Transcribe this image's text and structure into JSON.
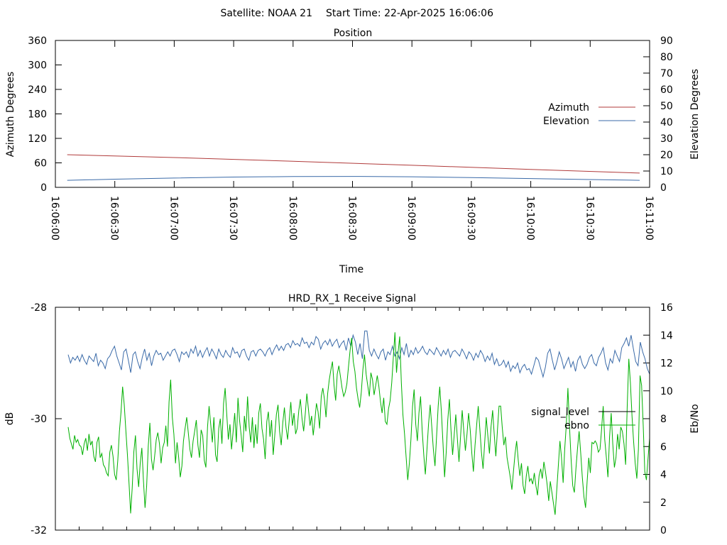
{
  "header": {
    "satellite_label": "Satellite: NOAA 21",
    "start_time_label": "Start Time: 22-Apr-2025 16:06:06"
  },
  "colors": {
    "azimuth": "#b03a3a",
    "elevation": "#3a6aa8",
    "signal_level": "#000000",
    "ebno": "#00b000",
    "axes": "#000000"
  },
  "chart_data": [
    {
      "type": "line",
      "title": "Position",
      "xlabel": "Time",
      "ylabel": "Azimuth Degrees",
      "y2label": "Elevation Degrees",
      "x_range": [
        "16:06:00",
        "16:11:00"
      ],
      "x_ticks": [
        "16:06:00",
        "16:06:30",
        "16:07:00",
        "16:07:30",
        "16:08:00",
        "16:08:30",
        "16:09:00",
        "16:09:30",
        "16:10:00",
        "16:10:30",
        "16:11:00"
      ],
      "ylim": [
        0,
        360
      ],
      "y_ticks": [
        0,
        60,
        120,
        180,
        240,
        300,
        360
      ],
      "y2lim": [
        0,
        90
      ],
      "y2_ticks": [
        0,
        10,
        20,
        30,
        40,
        50,
        60,
        70,
        80,
        90
      ],
      "legend_position": "right",
      "series": [
        {
          "name": "Azimuth",
          "axis": "y1",
          "color": "#b03a3a",
          "points": [
            [
              "16:06:06",
              80
            ],
            [
              "16:07:00",
              73
            ],
            [
              "16:08:00",
              64
            ],
            [
              "16:09:00",
              54
            ],
            [
              "16:10:00",
              44
            ],
            [
              "16:10:55",
              35
            ]
          ]
        },
        {
          "name": "Elevation",
          "axis": "y2",
          "color": "#3a6aa8",
          "points": [
            [
              "16:06:06",
              4.3
            ],
            [
              "16:06:30",
              5.0
            ],
            [
              "16:07:00",
              5.7
            ],
            [
              "16:07:30",
              6.3
            ],
            [
              "16:08:00",
              6.6
            ],
            [
              "16:08:30",
              6.7
            ],
            [
              "16:09:00",
              6.5
            ],
            [
              "16:09:30",
              6.0
            ],
            [
              "16:10:00",
              5.4
            ],
            [
              "16:10:30",
              4.8
            ],
            [
              "16:10:55",
              4.3
            ]
          ]
        }
      ]
    },
    {
      "type": "line",
      "title": "HRD_RX_1 Receive Signal",
      "xlabel": "",
      "ylabel": "dB",
      "y2label": "Eb/No",
      "ylim": [
        -32,
        -28
      ],
      "y_ticks": [
        -32,
        -30,
        -28
      ],
      "y2lim": [
        0,
        16
      ],
      "y2_ticks": [
        0,
        2,
        4,
        6,
        8,
        10,
        12,
        14,
        16
      ],
      "x_minor_ticks": 25,
      "legend_position": "right",
      "series": [
        {
          "name": "signal_level",
          "axis": "y2",
          "color": "#000000",
          "values": []
        },
        {
          "name": "ebno",
          "axis": "y2",
          "color": "#00b000",
          "values": []
        }
      ],
      "traces_shown": [
        {
          "color": "#3a6aa8",
          "axis": "y2",
          "sample_interval_s": 1.5,
          "values": [
            12.6,
            12.0,
            12.4,
            12.2,
            12.5,
            12.1,
            12.6,
            12.2,
            11.9,
            12.5,
            12.3,
            12.1,
            12.7,
            11.8,
            12.2,
            12.0,
            11.6,
            12.3,
            12.5,
            12.9,
            13.2,
            12.5,
            12.0,
            11.5,
            12.8,
            13.0,
            12.2,
            11.3,
            12.6,
            12.8,
            12.1,
            11.6,
            12.4,
            13.0,
            12.2,
            12.7,
            11.8,
            12.5,
            12.9,
            12.6,
            12.7,
            12.2,
            12.5,
            12.8,
            12.5,
            12.9,
            13.0,
            12.6,
            12.1,
            12.8,
            12.6,
            12.8,
            12.4,
            13.0,
            12.7,
            13.2,
            12.5,
            12.9,
            12.4,
            12.8,
            13.1,
            12.5,
            13.0,
            12.7,
            12.3,
            13.0,
            12.6,
            12.4,
            12.9,
            12.6,
            12.4,
            13.1,
            12.7,
            12.8,
            12.4,
            12.9,
            13.0,
            12.5,
            12.2,
            12.8,
            12.9,
            12.5,
            12.9,
            13.0,
            12.8,
            12.5,
            12.9,
            13.1,
            12.6,
            13.0,
            13.3,
            12.9,
            13.2,
            12.9,
            13.3,
            13.4,
            13.1,
            13.6,
            13.3,
            13.4,
            13.2,
            13.8,
            13.4,
            13.5,
            13.1,
            13.5,
            13.3,
            13.9,
            13.7,
            13.0,
            13.4,
            13.6,
            13.3,
            13.7,
            13.2,
            13.5,
            13.7,
            13.1,
            13.4,
            13.6,
            12.9,
            13.8,
            13.2,
            14.0,
            13.5,
            12.6,
            13.4,
            12.3,
            14.3,
            14.3,
            12.9,
            12.5,
            13.0,
            12.6,
            12.3,
            12.8,
            13.0,
            12.2,
            12.8,
            12.6,
            13.2,
            12.5,
            12.8,
            12.3,
            13.1,
            12.6,
            13.4,
            12.4,
            12.9,
            12.6,
            13.1,
            12.7,
            12.9,
            13.2,
            12.8,
            12.6,
            13.0,
            12.8,
            12.6,
            13.1,
            12.8,
            12.5,
            12.9,
            12.6,
            13.0,
            12.4,
            12.8,
            12.9,
            12.7,
            12.5,
            13.0,
            12.7,
            12.3,
            12.8,
            12.6,
            12.2,
            12.7,
            12.4,
            12.9,
            12.6,
            12.1,
            12.5,
            12.2,
            12.7,
            11.9,
            12.3,
            11.8,
            11.9,
            12.2,
            11.7,
            12.1,
            11.4,
            11.8,
            11.6,
            12.0,
            11.3,
            11.7,
            11.9,
            11.5,
            11.6,
            11.2,
            11.8,
            12.4,
            12.2,
            11.6,
            11.0,
            11.7,
            12.7,
            13.0,
            12.2,
            11.5,
            12.1,
            12.8,
            12.3,
            11.6,
            12.0,
            12.4,
            11.7,
            12.1,
            11.4,
            12.2,
            12.5,
            11.9,
            11.6,
            11.9,
            12.4,
            12.6,
            12.0,
            11.8,
            12.4,
            12.7,
            13.1,
            12.0,
            11.5,
            12.3,
            12.0,
            12.9,
            12.5,
            12.1,
            13.1,
            13.4,
            13.8,
            13.2,
            14.0,
            13.0,
            12.1,
            11.8,
            13.5,
            12.8,
            12.3,
            11.6,
            11.2
          ]
        },
        {
          "color": "#00b000",
          "axis": "y2",
          "sample_interval_s": 1.0,
          "values": [
            7.4,
            6.6,
            6.2,
            5.8,
            6.8,
            6.3,
            6.5,
            6.1,
            6.0,
            5.4,
            6.2,
            6.6,
            5.7,
            6.9,
            6.1,
            6.4,
            5.3,
            4.9,
            6.3,
            6.7,
            5.2,
            5.5,
            4.7,
            4.5,
            4.1,
            3.9,
            5.6,
            6.1,
            5.3,
            4.0,
            3.6,
            5.0,
            7.1,
            8.5,
            10.3,
            9.0,
            7.2,
            5.4,
            3.4,
            1.2,
            3.0,
            5.6,
            6.8,
            4.4,
            3.1,
            4.8,
            5.9,
            3.6,
            1.6,
            3.2,
            6.0,
            7.7,
            5.1,
            4.3,
            5.3,
            6.5,
            7.0,
            6.2,
            4.8,
            5.9,
            6.3,
            7.5,
            6.0,
            9.2,
            10.8,
            8.1,
            6.9,
            4.8,
            6.3,
            5.2,
            3.8,
            4.6,
            6.4,
            7.3,
            8.1,
            7.0,
            5.8,
            5.2,
            6.4,
            7.1,
            7.9,
            6.1,
            5.2,
            7.2,
            6.8,
            5.0,
            4.5,
            7.4,
            8.9,
            7.6,
            6.3,
            8.1,
            5.4,
            4.9,
            7.3,
            8.0,
            6.2,
            9.1,
            10.2,
            8.3,
            6.5,
            7.6,
            5.8,
            7.1,
            8.4,
            6.3,
            9.5,
            7.9,
            6.8,
            5.6,
            8.2,
            7.1,
            9.6,
            7.4,
            6.3,
            8.1,
            5.9,
            7.6,
            6.2,
            8.4,
            9.1,
            7.3,
            6.5,
            5.1,
            7.8,
            8.5,
            6.7,
            7.9,
            5.4,
            6.8,
            8.3,
            9.0,
            7.1,
            6.1,
            7.7,
            8.8,
            7.4,
            6.5,
            7.9,
            9.2,
            7.5,
            8.4,
            6.9,
            7.3,
            8.6,
            9.4,
            8.0,
            7.1,
            8.3,
            9.8,
            8.7,
            7.5,
            8.2,
            6.8,
            7.9,
            9.1,
            8.5,
            7.3,
            9.6,
            10.2,
            9.4,
            8.1,
            9.8,
            10.8,
            11.5,
            12.1,
            10.4,
            9.3,
            11.2,
            11.8,
            11.0,
            10.2,
            9.6,
            9.9,
            10.5,
            11.7,
            12.9,
            13.8,
            12.1,
            11.4,
            10.2,
            9.4,
            8.8,
            9.9,
            11.5,
            12.6,
            11.2,
            10.4,
            9.6,
            11.3,
            10.8,
            9.7,
            10.4,
            11.1,
            10.3,
            9.2,
            8.4,
            9.5,
            7.8,
            7.6,
            8.7,
            9.3,
            10.6,
            12.4,
            14.2,
            11.3,
            12.8,
            13.9,
            10.6,
            8.3,
            6.9,
            5.2,
            3.6,
            4.8,
            6.5,
            8.9,
            10.1,
            7.6,
            6.4,
            8.4,
            9.6,
            7.2,
            5.4,
            4.0,
            5.8,
            7.6,
            9.0,
            7.4,
            5.8,
            4.6,
            6.7,
            8.9,
            10.3,
            8.5,
            6.2,
            3.8,
            5.6,
            7.9,
            9.4,
            7.2,
            5.4,
            6.8,
            8.3,
            6.5,
            4.9,
            6.8,
            8.6,
            7.1,
            5.7,
            6.9,
            8.4,
            7.2,
            5.5,
            4.2,
            6.1,
            7.5,
            8.9,
            7.3,
            5.6,
            4.4,
            6.2,
            8.1,
            6.8,
            5.5,
            7.4,
            8.6,
            6.9,
            5.3,
            7.2,
            8.9,
            8.9,
            7.4,
            6.1,
            6.7,
            5.2,
            4.5,
            3.8,
            2.9,
            4.2,
            5.5,
            6.4,
            5.0,
            3.9,
            4.8,
            3.2,
            2.6,
            3.9,
            4.6,
            3.5,
            3.7,
            3.3,
            4.1,
            3.2,
            2.5,
            3.9,
            4.4,
            3.7,
            4.9,
            4.2,
            3.3,
            2.1,
            3.5,
            2.7,
            1.9,
            1.1,
            2.8,
            4.6,
            6.4,
            5.2,
            3.4,
            5.8,
            7.6,
            10.2,
            7.4,
            5.1,
            3.2,
            2.7,
            4.4,
            5.9,
            7.1,
            5.5,
            3.8,
            2.4,
            1.6,
            3.5,
            5.2,
            4.1,
            6.3,
            6.2,
            6.4,
            6.2,
            5.6,
            5.8,
            7.2,
            8.9,
            6.5,
            5.2,
            3.8,
            6.7,
            8.4,
            6.2,
            4.5,
            5.2,
            6.9,
            5.8,
            7.4,
            7.1,
            6.2,
            4.7,
            8.8,
            12.3,
            10.6,
            8.2,
            6.4,
            4.8,
            3.7,
            5.8,
            11.1,
            10.4,
            7.5,
            4.2,
            3.6,
            5.1,
            6.6
          ]
        }
      ]
    }
  ]
}
